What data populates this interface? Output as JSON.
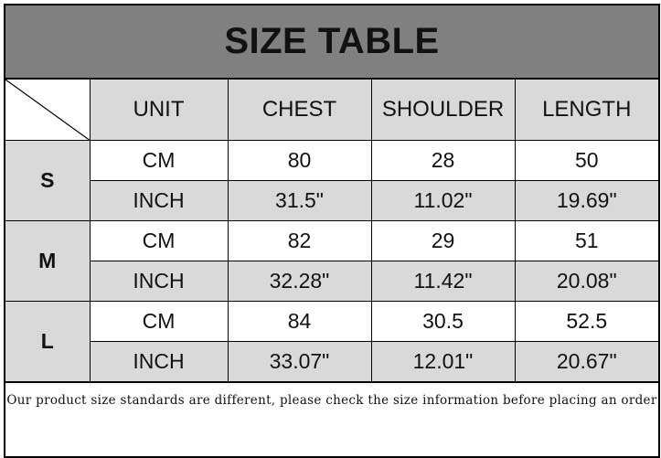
{
  "title": "SIZE TABLE",
  "headers": [
    "UNIT",
    "CHEST",
    "SHOULDER",
    "LENGTH"
  ],
  "rows": [
    {
      "size": "S",
      "cm": {
        "unit": "CM",
        "chest": "80",
        "shoulder": "28",
        "length": "50"
      },
      "inch": {
        "unit": "INCH",
        "chest": "31.5\"",
        "shoulder": "11.02\"",
        "length": "19.69\""
      }
    },
    {
      "size": "M",
      "cm": {
        "unit": "CM",
        "chest": "82",
        "shoulder": "29",
        "length": "51"
      },
      "inch": {
        "unit": "INCH",
        "chest": "32.28\"",
        "shoulder": "11.42\"",
        "length": "20.08\""
      }
    },
    {
      "size": "L",
      "cm": {
        "unit": "CM",
        "chest": "84",
        "shoulder": "30.5",
        "length": "52.5"
      },
      "inch": {
        "unit": "INCH",
        "chest": "33.07\"",
        "shoulder": "12.01\"",
        "length": "20.67\""
      }
    }
  ],
  "note": "Our product size standards are different, please check the size information before placing an order",
  "colors": {
    "title_bg": "#808080",
    "header_bg": "#d9d9d9"
  }
}
